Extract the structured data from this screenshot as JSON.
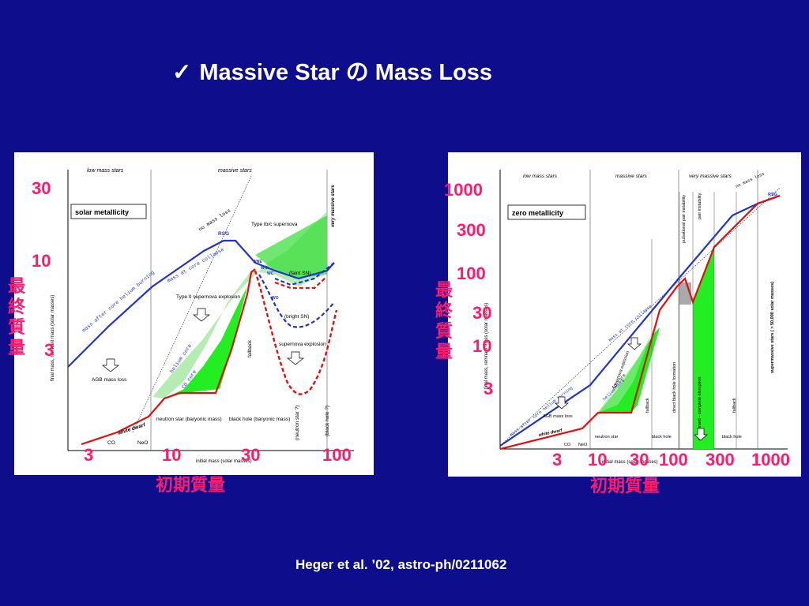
{
  "title": {
    "check": "✓",
    "text": "Massive Star の Mass Loss"
  },
  "credit": "Heger et al. ’02, astro-ph/0211062",
  "chart_data": [
    {
      "type": "line",
      "panel": "solar metallicity",
      "legend_box": "solar metallicity",
      "xscale": "log",
      "yscale": "log",
      "xlim": [
        1.5,
        150
      ],
      "ylim": [
        0.8,
        40
      ],
      "xlabel": "initial mass (solar masses)",
      "ylabel": "final mass, remnant mass (solar masses)",
      "overlay_x_ticks": [
        "3",
        "10",
        "30",
        "100"
      ],
      "overlay_y_ticks": [
        "30",
        "10",
        "3"
      ],
      "overlay_xlabel": "初期質量",
      "overlay_ylabel": "最終質量",
      "regions": [
        "low mass stars",
        "massive stars",
        "very massive stars"
      ],
      "series": [
        {
          "name": "mass after core helium burning",
          "color": "#2233cc",
          "x": [
            1.5,
            8,
            20,
            25,
            30,
            35,
            100,
            150
          ],
          "y": [
            2.2,
            8,
            15,
            15,
            13,
            10,
            9,
            11
          ]
        },
        {
          "name": "remnant mass",
          "color": "#dd1111",
          "x": [
            2,
            8,
            10,
            15,
            20,
            25,
            30,
            35,
            40
          ],
          "y": [
            0.8,
            1.2,
            1.4,
            1.6,
            3,
            10,
            10,
            5,
            1.6
          ]
        },
        {
          "name": "supernova explosion (dashed)",
          "color": "#dd1111",
          "x": [
            30,
            40,
            50,
            60,
            100
          ],
          "y": [
            9,
            3,
            1.6,
            1.6,
            4
          ]
        }
      ],
      "annotations": [
        "no mass loss",
        "RSG",
        "Type Ib/c supernova",
        "WNE",
        "WNL",
        "WC",
        "WO",
        "(faint SN)",
        "(bright SN)",
        "Type II supernova explosion",
        "supernova explosion",
        "AGB mass loss",
        "white dwarf",
        "neutron star (baryonic mass)",
        "black hole (baryonic mass)",
        "(neutron star ?)",
        "(black hole ?)",
        "fallback",
        "CO",
        "NeO",
        "helium core",
        "CO core",
        "mass at core collapse",
        "mass after core helium burning"
      ]
    },
    {
      "type": "line",
      "panel": "zero metallicity",
      "legend_box": "zero metallicity",
      "xscale": "log",
      "yscale": "log",
      "xlim": [
        1,
        1000
      ],
      "ylim": [
        0.5,
        1000
      ],
      "xlabel": "initial mass (solar masses)",
      "ylabel": "final mass, remnant mass (solar masses)",
      "overlay_x_ticks": [
        "3",
        "10",
        "30",
        "100",
        "300",
        "1000"
      ],
      "overlay_y_ticks": [
        "1000",
        "300",
        "100",
        "30",
        "10",
        "3"
      ],
      "overlay_xlabel": "初期質量",
      "overlay_ylabel": "最終質量",
      "regions": [
        "low mass stars",
        "massive stars",
        "very massive stars"
      ],
      "series": [
        {
          "name": "mass after core helium burning",
          "color": "#2233cc",
          "x": [
            1,
            10,
            100,
            300,
            1000
          ],
          "y": [
            0.8,
            10,
            100,
            300,
            700
          ]
        },
        {
          "name": "remnant mass",
          "color": "#dd1111",
          "x": [
            1,
            8,
            25,
            40,
            100,
            140,
            260,
            1000
          ],
          "y": [
            0.5,
            1.2,
            2,
            30,
            80,
            140,
            260,
            700
          ]
        }
      ],
      "annotations": [
        "no mass loss",
        "RSG",
        "pulsational pair instability",
        "pair instability",
        "direct black hole formation",
        "no remnant - complete disruption",
        "fallback",
        "AGB mass loss",
        "white dwarf",
        "neutron star",
        "black hole",
        "supermassive stars ( > 50,000 solar masses)",
        "CO",
        "NeO",
        "supernova explosion",
        "helium core",
        "CO core",
        "mass at core collapse",
        "mass after core helium burning"
      ]
    }
  ]
}
